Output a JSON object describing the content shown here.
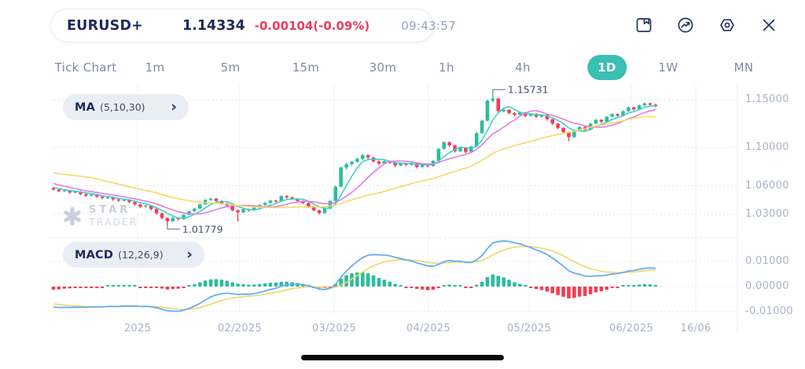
{
  "header": {
    "symbol": "EURUSD+",
    "price": "1.14334",
    "change": "-0.00104(-0.09%)",
    "time": "09:43:57"
  },
  "toolbar_icons": [
    "save-icon",
    "indicator-icon",
    "settings-icon",
    "close-icon"
  ],
  "timeframes": {
    "items": [
      "Tick Chart",
      "1m",
      "5m",
      "15m",
      "30m",
      "1h",
      "4h",
      "1D",
      "1W",
      "MN"
    ],
    "selected": "1D"
  },
  "indicators": {
    "ma": {
      "name": "MA",
      "params": "(5,10,30)",
      "chevron": "›"
    },
    "macd": {
      "name": "MACD",
      "params": "(12,26,9)",
      "chevron": "›"
    }
  },
  "watermark": {
    "line1": "STAR",
    "line2": "TRADER"
  },
  "chart_data": {
    "type": "candlestick",
    "symbol": "EURUSD+",
    "timeframe": "1D",
    "y_axis": {
      "ticks": [
        1.15,
        1.1,
        1.06,
        1.03
      ],
      "labels": [
        "1.15000",
        "1.10000",
        "1.06000",
        "1.03000"
      ]
    },
    "x_axis": {
      "labels": [
        "2025",
        "02/2025",
        "03/2025",
        "04/2025",
        "05/2025",
        "06/2025",
        "16/06"
      ],
      "positions_idx": [
        15.5,
        34.3,
        51.7,
        69.1,
        87.7,
        106.5,
        118.4
      ]
    },
    "annotations": {
      "max_high": 1.15731,
      "min_low": 1.01779,
      "high_label": "1.15731",
      "low_label": "1.01779"
    },
    "colors": {
      "up": "#2BBD9E",
      "down": "#F43B56"
    },
    "overlays": {
      "ma": {
        "periods": [
          5,
          10,
          30
        ],
        "colors": [
          "#3ED3C8",
          "#E07CE8",
          "#F6D865"
        ]
      }
    },
    "macd_panel": {
      "params": [
        12,
        26,
        9
      ],
      "y_ticks": [
        0.01,
        0,
        -0.01
      ],
      "y_labels": [
        "0.01000",
        "0.00000",
        "-0.01000"
      ],
      "colors": {
        "macd": "#64AEF2",
        "signal": "#EFD66B"
      }
    },
    "warmup_closes": [
      1.092,
      1.0905,
      1.088,
      1.0858,
      1.0868,
      1.084,
      1.0815,
      1.0792,
      1.08,
      1.0772,
      1.0748,
      1.0722,
      1.073,
      1.0702,
      1.0675,
      1.0652,
      1.066,
      1.0636,
      1.0612,
      1.0592,
      1.0575,
      1.0565
    ],
    "candles": [
      [
        1.0575,
        1.0588,
        1.0548,
        1.056
      ],
      [
        1.056,
        1.0572,
        1.053,
        1.0542
      ],
      [
        1.0542,
        1.0563,
        1.0535,
        1.0551
      ],
      [
        1.0551,
        1.0558,
        1.0515,
        1.0528
      ],
      [
        1.0528,
        1.055,
        1.052,
        1.0538
      ],
      [
        1.0538,
        1.0545,
        1.05,
        1.0512
      ],
      [
        1.0512,
        1.052,
        1.0482,
        1.0496
      ],
      [
        1.0496,
        1.0518,
        1.0488,
        1.0508
      ],
      [
        1.0508,
        1.0515,
        1.0472,
        1.0485
      ],
      [
        1.0485,
        1.0495,
        1.0458,
        1.047
      ],
      [
        1.047,
        1.0488,
        1.0462,
        1.0478
      ],
      [
        1.0478,
        1.0482,
        1.044,
        1.0455
      ],
      [
        1.0455,
        1.0465,
        1.043,
        1.0444
      ],
      [
        1.0444,
        1.046,
        1.0436,
        1.0452
      ],
      [
        1.0452,
        1.0458,
        1.0415,
        1.0428
      ],
      [
        1.0428,
        1.0438,
        1.0392,
        1.0405
      ],
      [
        1.0405,
        1.0412,
        1.0365,
        1.038
      ],
      [
        1.038,
        1.0398,
        1.037,
        1.0392
      ],
      [
        1.0392,
        1.0398,
        1.034,
        1.0355
      ],
      [
        1.0355,
        1.0362,
        1.0295,
        1.031
      ],
      [
        1.031,
        1.032,
        1.0248,
        1.0262
      ],
      [
        1.0262,
        1.027,
        1.01779,
        1.0228
      ],
      [
        1.0228,
        1.0275,
        1.022,
        1.0262
      ],
      [
        1.0262,
        1.0268,
        1.0235,
        1.025
      ],
      [
        1.025,
        1.0302,
        1.0242,
        1.0295
      ],
      [
        1.0295,
        1.034,
        1.0288,
        1.0332
      ],
      [
        1.0332,
        1.0368,
        1.0325,
        1.036
      ],
      [
        1.036,
        1.0412,
        1.0352,
        1.0405
      ],
      [
        1.0405,
        1.046,
        1.0398,
        1.0452
      ],
      [
        1.0452,
        1.0472,
        1.0438,
        1.0465
      ],
      [
        1.0465,
        1.047,
        1.0428,
        1.044
      ],
      [
        1.044,
        1.0448,
        1.0402,
        1.0415
      ],
      [
        1.0415,
        1.0422,
        1.0378,
        1.039
      ],
      [
        1.039,
        1.0395,
        1.033,
        1.0342
      ],
      [
        1.0342,
        1.035,
        1.0226,
        1.032
      ],
      [
        1.032,
        1.0362,
        1.0312,
        1.0355
      ],
      [
        1.0355,
        1.036,
        1.0328,
        1.0342
      ],
      [
        1.0342,
        1.0378,
        1.0335,
        1.037
      ],
      [
        1.037,
        1.0405,
        1.0362,
        1.0398
      ],
      [
        1.0398,
        1.0428,
        1.039,
        1.042
      ],
      [
        1.042,
        1.0452,
        1.0412,
        1.0445
      ],
      [
        1.0445,
        1.045,
        1.042,
        1.0435
      ],
      [
        1.0435,
        1.0498,
        1.0428,
        1.0492
      ],
      [
        1.0492,
        1.05,
        1.0465,
        1.0478
      ],
      [
        1.0478,
        1.0485,
        1.0448,
        1.046
      ],
      [
        1.046,
        1.0468,
        1.0428,
        1.044
      ],
      [
        1.044,
        1.0446,
        1.0405,
        1.0418
      ],
      [
        1.0418,
        1.0425,
        1.0368,
        1.038
      ],
      [
        1.038,
        1.0388,
        1.033,
        1.0342
      ],
      [
        1.0342,
        1.035,
        1.0298,
        1.0312
      ],
      [
        1.0312,
        1.0372,
        1.0305,
        1.036
      ],
      [
        1.036,
        1.045,
        1.0352,
        1.044
      ],
      [
        1.044,
        1.06,
        1.0432,
        1.059
      ],
      [
        1.059,
        1.08,
        1.0582,
        1.079
      ],
      [
        1.079,
        1.084,
        1.0768,
        1.0825
      ],
      [
        1.0825,
        1.0862,
        1.0805,
        1.085
      ],
      [
        1.085,
        1.0892,
        1.0838,
        1.088
      ],
      [
        1.088,
        1.0932,
        1.0868,
        1.092
      ],
      [
        1.092,
        1.0928,
        1.0878,
        1.0895
      ],
      [
        1.0895,
        1.0902,
        1.084,
        1.0855
      ],
      [
        1.0855,
        1.0865,
        1.0815,
        1.083
      ],
      [
        1.083,
        1.0865,
        1.0822,
        1.0858
      ],
      [
        1.0858,
        1.0862,
        1.0825,
        1.084
      ],
      [
        1.084,
        1.0848,
        1.0795,
        1.0812
      ],
      [
        1.0812,
        1.0842,
        1.0802,
        1.0835
      ],
      [
        1.0835,
        1.084,
        1.0805,
        1.0818
      ],
      [
        1.0818,
        1.0848,
        1.081,
        1.084
      ],
      [
        1.084,
        1.0845,
        1.078,
        1.0795
      ],
      [
        1.0795,
        1.083,
        1.0788,
        1.0822
      ],
      [
        1.0822,
        1.0828,
        1.079,
        1.0805
      ],
      [
        1.0805,
        1.087,
        1.0798,
        1.086
      ],
      [
        1.086,
        1.0995,
        1.0852,
        1.0985
      ],
      [
        1.0985,
        1.1065,
        1.0978,
        1.1055
      ],
      [
        1.1055,
        1.1062,
        1.1005,
        1.1022
      ],
      [
        1.1022,
        1.103,
        1.0945,
        1.096
      ],
      [
        1.096,
        1.1008,
        1.0952,
        1.0998
      ],
      [
        1.0998,
        1.1005,
        1.0938,
        1.0952
      ],
      [
        1.0952,
        1.1018,
        1.0945,
        1.101
      ],
      [
        1.101,
        1.116,
        1.1002,
        1.115
      ],
      [
        1.115,
        1.1292,
        1.1142,
        1.128
      ],
      [
        1.128,
        1.15,
        1.1272,
        1.149
      ],
      [
        1.149,
        1.15731,
        1.147,
        1.1512
      ],
      [
        1.1512,
        1.152,
        1.1365,
        1.138
      ],
      [
        1.138,
        1.1408,
        1.1368,
        1.1395
      ],
      [
        1.1395,
        1.14,
        1.1345,
        1.136
      ],
      [
        1.136,
        1.1368,
        1.1325,
        1.1342
      ],
      [
        1.1342,
        1.1375,
        1.1335,
        1.1368
      ],
      [
        1.1368,
        1.1372,
        1.1315,
        1.133
      ],
      [
        1.133,
        1.136,
        1.1322,
        1.1352
      ],
      [
        1.1352,
        1.1358,
        1.1305,
        1.1322
      ],
      [
        1.1322,
        1.1348,
        1.1312,
        1.134
      ],
      [
        1.134,
        1.1345,
        1.1282,
        1.1296
      ],
      [
        1.1296,
        1.1302,
        1.1235,
        1.125
      ],
      [
        1.125,
        1.1258,
        1.119,
        1.1205
      ],
      [
        1.1205,
        1.1212,
        1.1145,
        1.116
      ],
      [
        1.116,
        1.1168,
        1.1065,
        1.1108
      ],
      [
        1.1108,
        1.1188,
        1.11,
        1.118
      ],
      [
        1.118,
        1.1222,
        1.1172,
        1.1215
      ],
      [
        1.1215,
        1.122,
        1.117,
        1.1185
      ],
      [
        1.1185,
        1.1258,
        1.1178,
        1.125
      ],
      [
        1.125,
        1.1298,
        1.1242,
        1.129
      ],
      [
        1.129,
        1.1295,
        1.1255,
        1.127
      ],
      [
        1.127,
        1.133,
        1.1262,
        1.1322
      ],
      [
        1.1322,
        1.1358,
        1.1315,
        1.135
      ],
      [
        1.135,
        1.1355,
        1.1318,
        1.1332
      ],
      [
        1.1332,
        1.1388,
        1.1325,
        1.138
      ],
      [
        1.138,
        1.1428,
        1.1372,
        1.142
      ],
      [
        1.142,
        1.1426,
        1.1385,
        1.1398
      ],
      [
        1.1398,
        1.1448,
        1.139,
        1.144
      ],
      [
        1.144,
        1.147,
        1.1432,
        1.1462
      ],
      [
        1.1462,
        1.1468,
        1.1435,
        1.1448
      ],
      [
        1.1448,
        1.146,
        1.142,
        1.14334
      ]
    ]
  }
}
